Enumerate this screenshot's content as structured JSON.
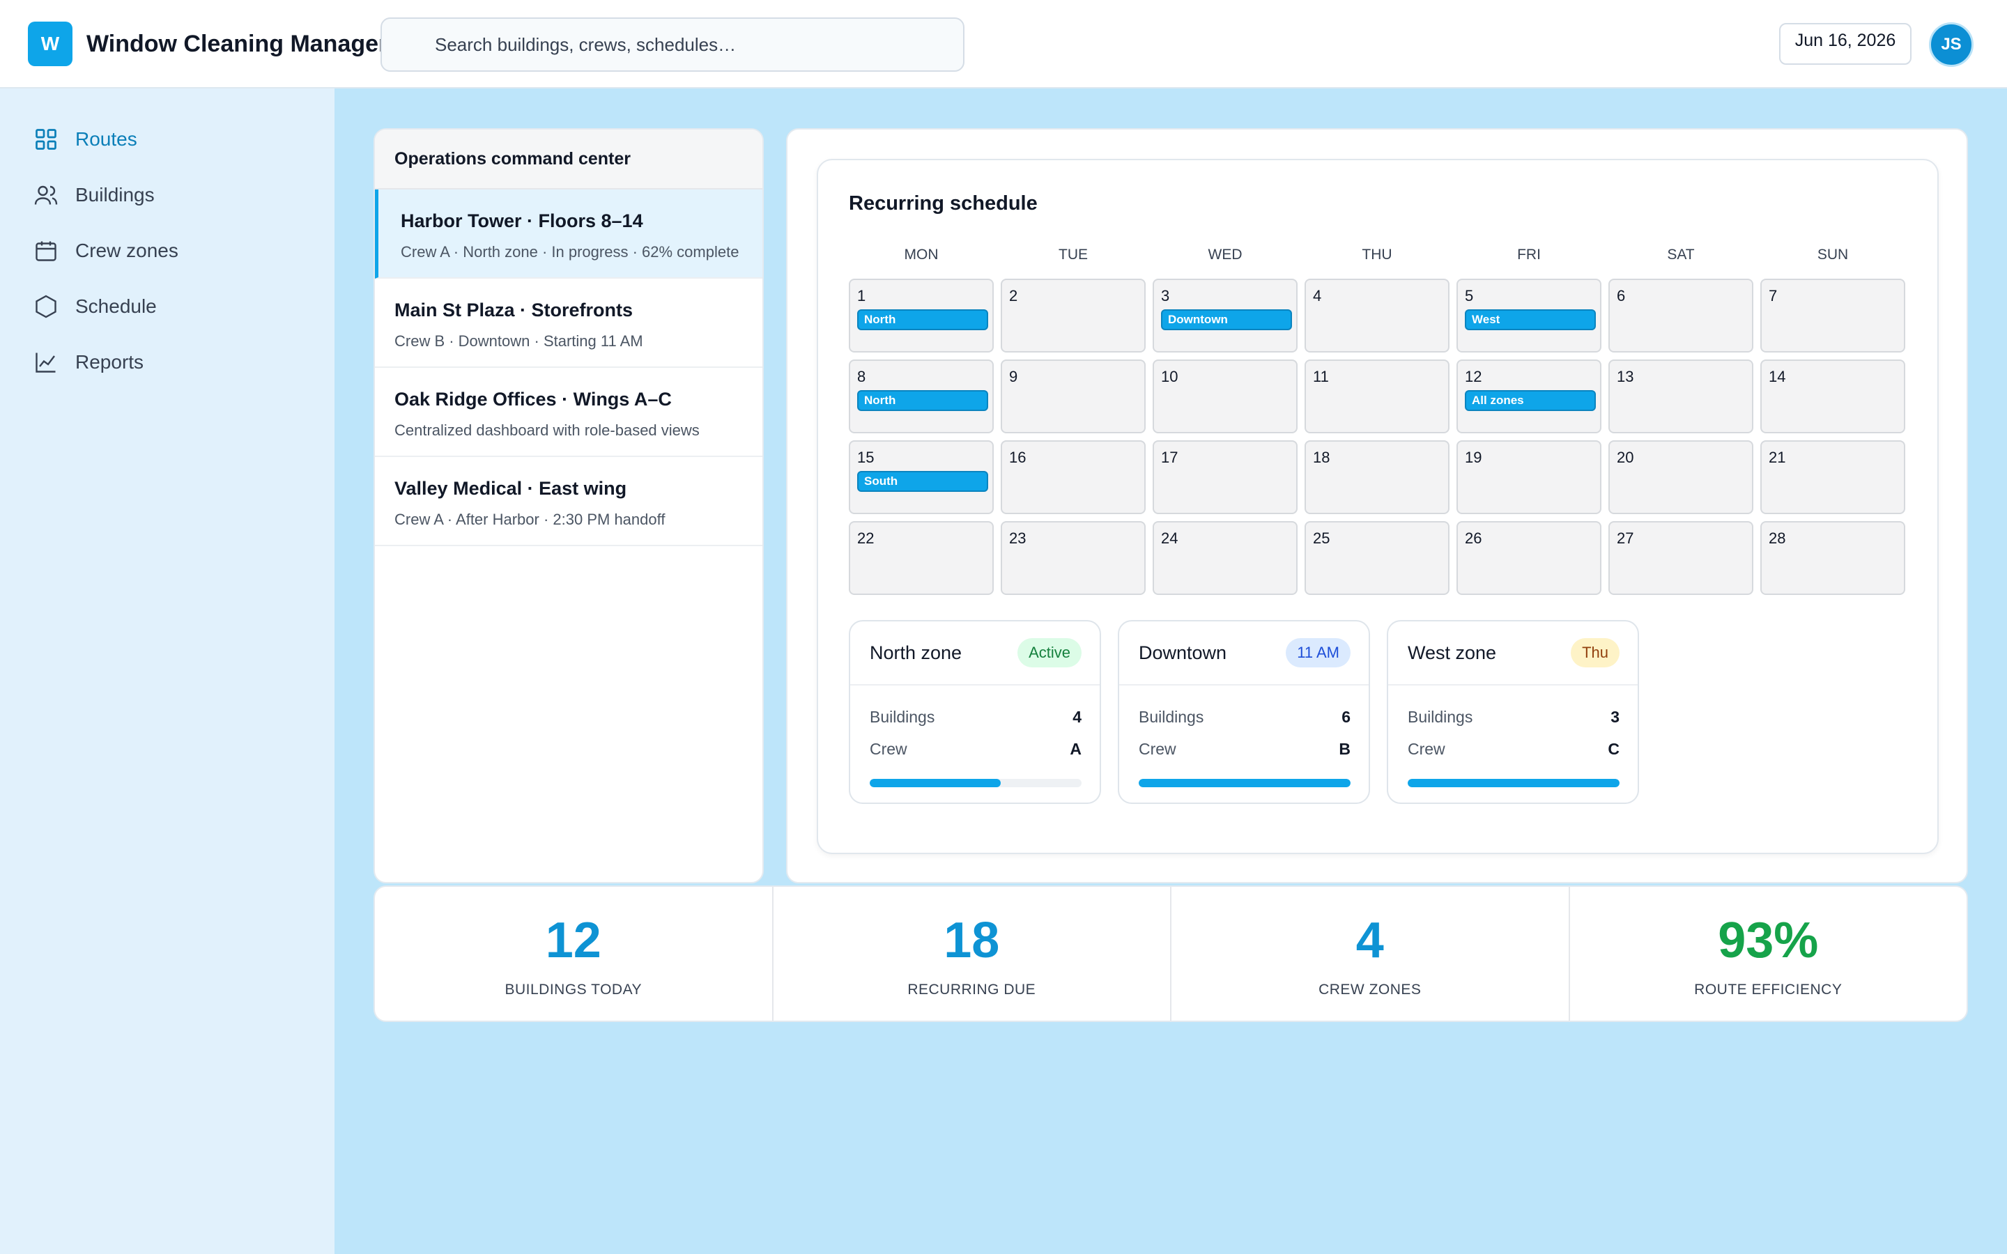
{
  "app": {
    "logo_letter": "W",
    "title": "Window Cleaning Manager",
    "search_placeholder": "Search buildings, crews, schedules…",
    "date": "Jun 16, 2026",
    "user_initials": "JS"
  },
  "sidebar": {
    "items": [
      {
        "label": "Routes",
        "icon": "grid-icon",
        "active": true
      },
      {
        "label": "Buildings",
        "icon": "users-icon",
        "active": false
      },
      {
        "label": "Crew zones",
        "icon": "calendar-icon",
        "active": false
      },
      {
        "label": "Schedule",
        "icon": "hexagon-icon",
        "active": false
      },
      {
        "label": "Reports",
        "icon": "line-chart-icon",
        "active": false
      }
    ]
  },
  "routes_panel": {
    "title": "Operations command center",
    "routes": [
      {
        "title": "Harbor Tower · Floors 8–14",
        "subtitle": "Crew A · North zone · In progress · 62% complete",
        "selected": true
      },
      {
        "title": "Main St Plaza · Storefronts",
        "subtitle": "Crew B · Downtown · Starting 11 AM",
        "selected": false
      },
      {
        "title": "Oak Ridge Offices · Wings A–C",
        "subtitle": "Centralized dashboard with role-based views",
        "selected": false
      },
      {
        "title": "Valley Medical · East wing",
        "subtitle": "Crew A · After Harbor · 2:30 PM handoff",
        "selected": false
      }
    ]
  },
  "schedule": {
    "title": "Recurring schedule",
    "weekdays": [
      "MON",
      "TUE",
      "WED",
      "THU",
      "FRI",
      "SAT",
      "SUN"
    ],
    "weeks": [
      [
        {
          "day": "1",
          "tag": "North"
        },
        {
          "day": "2",
          "tag": ""
        },
        {
          "day": "3",
          "tag": "Downtown"
        },
        {
          "day": "4",
          "tag": ""
        },
        {
          "day": "5",
          "tag": "West"
        },
        {
          "day": "6",
          "tag": ""
        },
        {
          "day": "7",
          "tag": ""
        }
      ],
      [
        {
          "day": "8",
          "tag": "North"
        },
        {
          "day": "9",
          "tag": ""
        },
        {
          "day": "10",
          "tag": ""
        },
        {
          "day": "11",
          "tag": ""
        },
        {
          "day": "12",
          "tag": "All zones"
        },
        {
          "day": "13",
          "tag": ""
        },
        {
          "day": "14",
          "tag": ""
        }
      ],
      [
        {
          "day": "15",
          "tag": "South"
        },
        {
          "day": "16",
          "tag": ""
        },
        {
          "day": "17",
          "tag": ""
        },
        {
          "day": "18",
          "tag": ""
        },
        {
          "day": "19",
          "tag": ""
        },
        {
          "day": "20",
          "tag": ""
        },
        {
          "day": "21",
          "tag": ""
        }
      ],
      [
        {
          "day": "22",
          "tag": ""
        },
        {
          "day": "23",
          "tag": ""
        },
        {
          "day": "24",
          "tag": ""
        },
        {
          "day": "25",
          "tag": ""
        },
        {
          "day": "26",
          "tag": ""
        },
        {
          "day": "27",
          "tag": ""
        },
        {
          "day": "28",
          "tag": ""
        }
      ]
    ],
    "zones": [
      {
        "name": "North zone",
        "badge": "Active",
        "badge_bg": "#dcfce7",
        "badge_color": "#15803d",
        "buildings_label": "Buildings",
        "buildings": "4",
        "crew_label": "Crew",
        "crew": "A",
        "progress": 0.62
      },
      {
        "name": "Downtown",
        "badge": "11 AM",
        "badge_bg": "#dbeafe",
        "badge_color": "#1d4ed8",
        "buildings_label": "Buildings",
        "buildings": "6",
        "crew_label": "Crew",
        "crew": "B",
        "progress": 1.0
      },
      {
        "name": "West zone",
        "badge": "Thu",
        "badge_bg": "#fef3c7",
        "badge_color": "#92400e",
        "buildings_label": "Buildings",
        "buildings": "3",
        "crew_label": "Crew",
        "crew": "C",
        "progress": 1.0
      }
    ]
  },
  "stats": [
    {
      "value": "12",
      "label": "BUILDINGS TODAY",
      "color": "#0e93d4"
    },
    {
      "value": "18",
      "label": "RECURRING DUE",
      "color": "#0e93d4"
    },
    {
      "value": "4",
      "label": "CREW ZONES",
      "color": "#0e93d4"
    },
    {
      "value": "93%",
      "label": "ROUTE EFFICIENCY",
      "color": "#16a34a"
    }
  ],
  "colors": {
    "accent": "#0ea5e9",
    "background": "#bde5fa",
    "sidebar_bg": "#e1f1fc",
    "active_nav": "#0b7fb8"
  }
}
